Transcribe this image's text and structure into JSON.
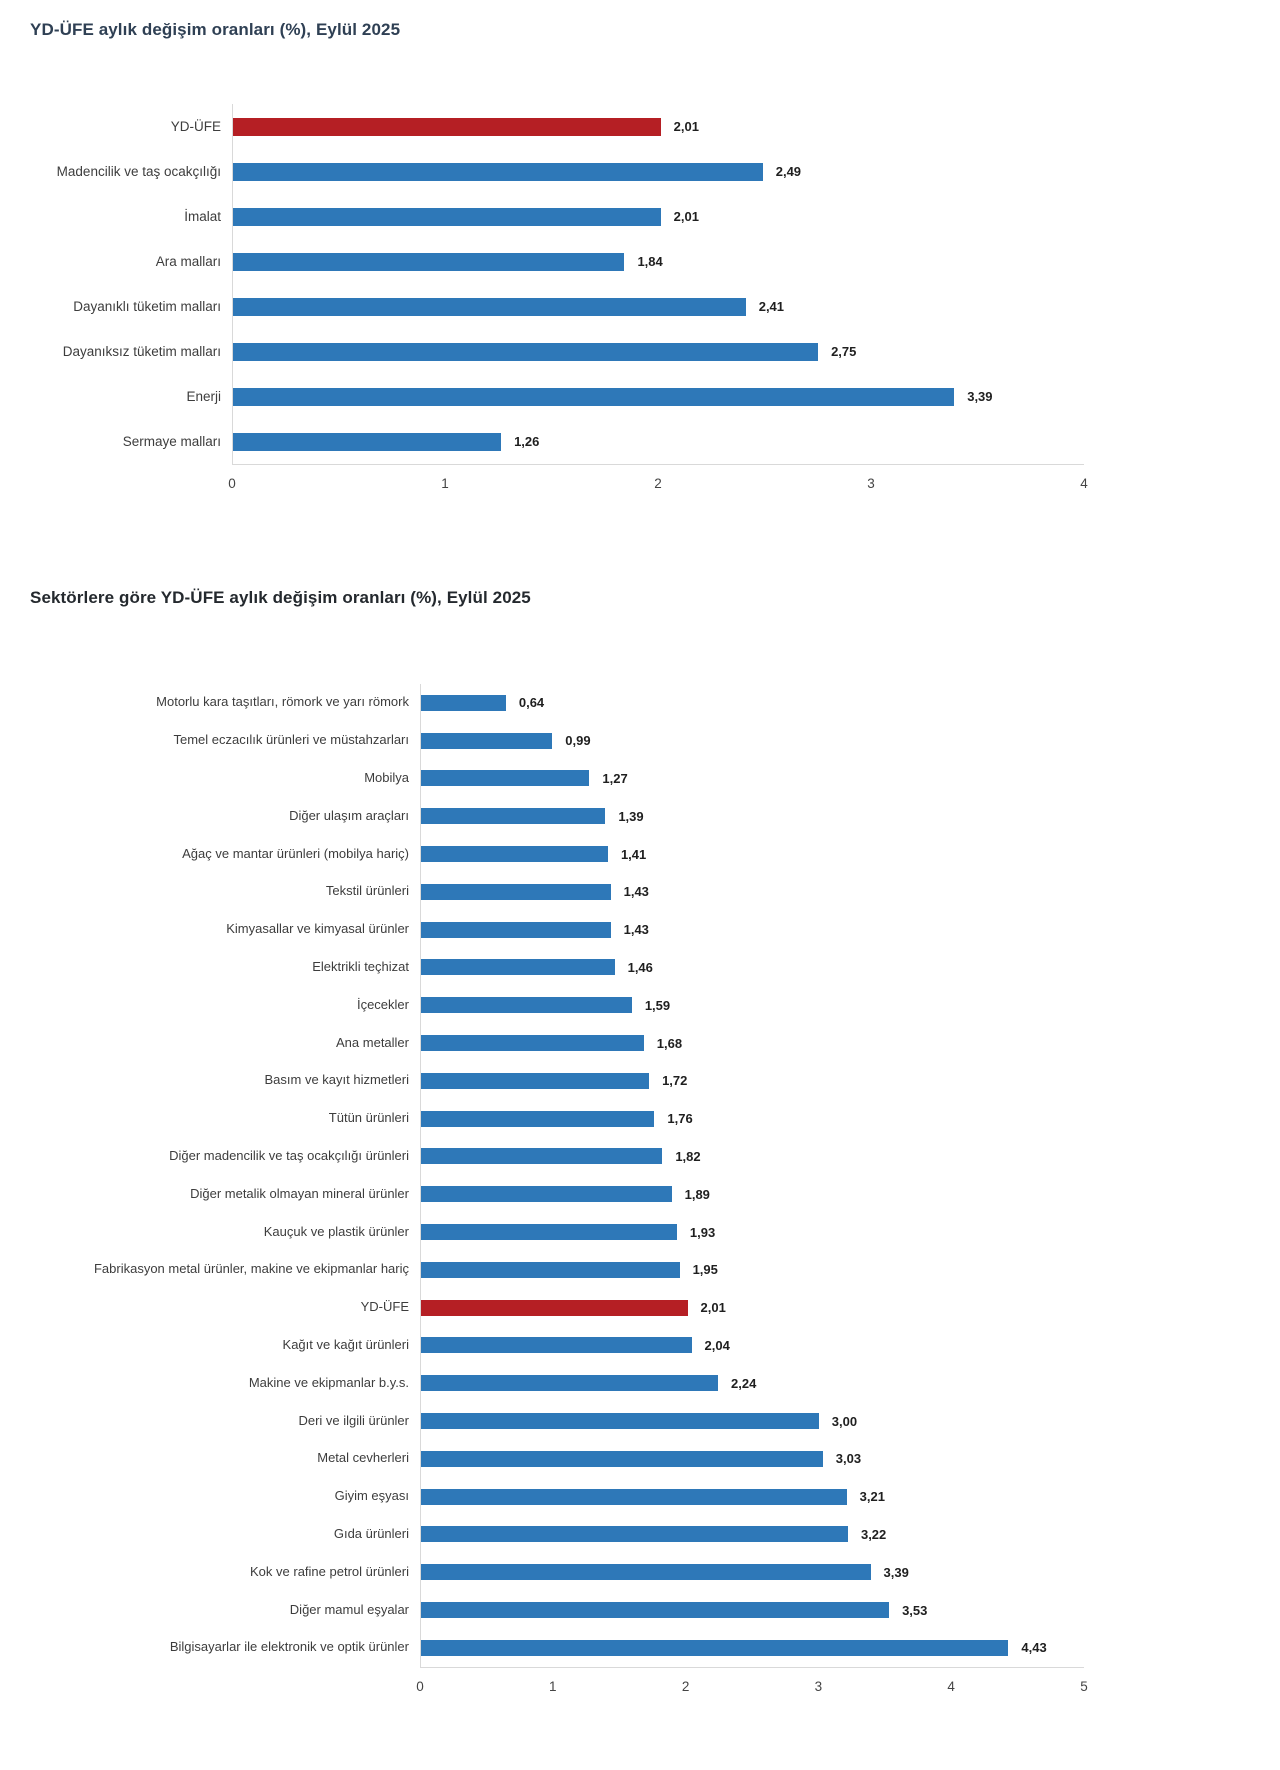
{
  "page": {
    "background": "#ffffff"
  },
  "chart_data": [
    {
      "type": "bar",
      "orientation": "horizontal",
      "title": "YD-ÜFE aylık değişim oranları (%), Eylül 2025",
      "title_color": "#2f4054",
      "categories": [
        "YD-ÜFE",
        "Madencilik ve taş ocakçılığı",
        "İmalat",
        "Ara malları",
        "Dayanıklı tüketim malları",
        "Dayanıksız tüketim malları",
        "Enerji",
        "Sermaye malları"
      ],
      "values": [
        2.01,
        2.49,
        2.01,
        1.84,
        2.41,
        2.75,
        3.39,
        1.26
      ],
      "value_labels": [
        "2,01",
        "2,49",
        "2,01",
        "1,84",
        "2,41",
        "2,75",
        "3,39",
        "1,26"
      ],
      "highlight_index": 0,
      "bar_color": "#2e78b8",
      "highlight_color": "#b51f24",
      "xlabel": "",
      "ylabel": "",
      "xlim": [
        0,
        4
      ],
      "xticks": [
        0,
        1,
        2,
        3,
        4
      ],
      "grid": false,
      "legend": false,
      "decimal_separator": ","
    },
    {
      "type": "bar",
      "orientation": "horizontal",
      "title": "Sektörlere göre YD-ÜFE aylık değişim oranları (%), Eylül 2025",
      "title_color": "#24292e",
      "categories": [
        "Motorlu kara taşıtları, römork ve yarı römork",
        "Temel eczacılık ürünleri ve müstahzarları",
        "Mobilya",
        "Diğer ulaşım araçları",
        "Ağaç ve mantar ürünleri (mobilya hariç)",
        "Tekstil ürünleri",
        "Kimyasallar ve kimyasal ürünler",
        "Elektrikli teçhizat",
        "İçecekler",
        "Ana metaller",
        "Basım ve kayıt hizmetleri",
        "Tütün ürünleri",
        "Diğer madencilik ve taş ocakçılığı ürünleri",
        "Diğer metalik olmayan mineral ürünler",
        "Kauçuk ve plastik ürünler",
        "Fabrikasyon metal ürünler, makine ve ekipmanlar hariç",
        "YD-ÜFE",
        "Kağıt ve kağıt ürünleri",
        "Makine ve ekipmanlar b.y.s.",
        "Deri ve ilgili ürünler",
        "Metal cevherleri",
        "Giyim eşyası",
        "Gıda ürünleri",
        "Kok ve rafine petrol ürünleri",
        "Diğer mamul eşyalar",
        "Bilgisayarlar ile elektronik ve optik ürünler"
      ],
      "values": [
        0.64,
        0.99,
        1.27,
        1.39,
        1.41,
        1.43,
        1.43,
        1.46,
        1.59,
        1.68,
        1.72,
        1.76,
        1.82,
        1.89,
        1.93,
        1.95,
        2.01,
        2.04,
        2.24,
        3.0,
        3.03,
        3.21,
        3.22,
        3.39,
        3.53,
        4.43
      ],
      "value_labels": [
        "0,64",
        "0,99",
        "1,27",
        "1,39",
        "1,41",
        "1,43",
        "1,43",
        "1,46",
        "1,59",
        "1,68",
        "1,72",
        "1,76",
        "1,82",
        "1,89",
        "1,93",
        "1,95",
        "2,01",
        "2,04",
        "2,24",
        "3,00",
        "3,03",
        "3,21",
        "3,22",
        "3,39",
        "3,53",
        "4,43"
      ],
      "highlight_index": 16,
      "bar_color": "#2e78b8",
      "highlight_color": "#b51f24",
      "xlabel": "",
      "ylabel": "",
      "xlim": [
        0,
        5
      ],
      "xticks": [
        0,
        1,
        2,
        3,
        4,
        5
      ],
      "grid": false,
      "legend": false,
      "decimal_separator": ","
    }
  ]
}
